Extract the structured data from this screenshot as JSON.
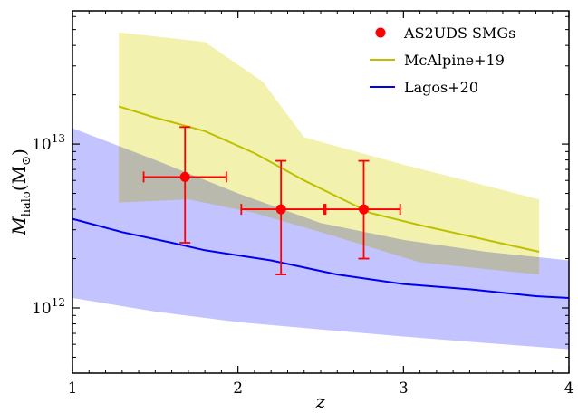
{
  "chart_data": {
    "type": "scatter",
    "xlabel": "z",
    "ylabel": "M_halo(M_⊙)",
    "ylabel_parts": {
      "main": "M",
      "sub": "halo",
      "unit_open": "(M",
      "unit_sub": "⊙",
      "unit_close": ")"
    },
    "xlim": [
      1,
      4
    ],
    "ylim": [
      400000000000.0,
      65000000000000.0
    ],
    "yscale": "log",
    "x_ticks": [
      1,
      2,
      3,
      4
    ],
    "y_ticks": [
      {
        "value": 1000000000000.0,
        "base": "10",
        "exp": "12"
      },
      {
        "value": 10000000000000.0,
        "base": "10",
        "exp": "13"
      }
    ],
    "legend": {
      "position": "top-right"
    },
    "series": [
      {
        "name": "AS2UDS SMGs",
        "kind": "errorbar",
        "color": "#ff0000",
        "points": [
          {
            "x": 1.68,
            "y": 6300000000000.0,
            "xerr": [
              1.43,
              1.93
            ],
            "yerr": [
              2500000000000.0,
              12700000000000.0
            ]
          },
          {
            "x": 2.26,
            "y": 4000000000000.0,
            "xerr": [
              2.02,
              2.52
            ],
            "yerr": [
              1600000000000.0,
              7900000000000.0
            ]
          },
          {
            "x": 2.76,
            "y": 4000000000000.0,
            "xerr": [
              2.53,
              2.98
            ],
            "yerr": [
              2000000000000.0,
              7900000000000.0
            ]
          }
        ]
      },
      {
        "name": "McAlpine+19",
        "kind": "line-band",
        "color": "#bfbf00",
        "band_color": "#f0f0a0",
        "x": [
          1.28,
          1.5,
          1.8,
          2.1,
          2.4,
          2.8,
          3.1,
          3.5,
          3.82
        ],
        "y": [
          17000000000000.0,
          14500000000000.0,
          12000000000000.0,
          8800000000000.0,
          6000000000000.0,
          3800000000000.0,
          3200000000000.0,
          2600000000000.0,
          2200000000000.0
        ],
        "band": {
          "x": [
            1.28,
            1.8,
            2.15,
            2.4,
            3.0,
            3.82
          ],
          "upper": [
            48000000000000.0,
            42000000000000.0,
            24000000000000.0,
            11000000000000.0,
            7500000000000.0,
            4600000000000.0
          ],
          "lower_x": [
            1.28,
            1.7,
            2.1,
            2.5,
            3.1,
            3.82
          ],
          "lower": [
            4400000000000.0,
            4600000000000.0,
            3800000000000.0,
            2900000000000.0,
            1900000000000.0,
            1600000000000.0
          ]
        }
      },
      {
        "name": "Lagos+20",
        "kind": "line-band",
        "color": "#0000ee",
        "band_color": "#b8b8ff",
        "x": [
          1.0,
          1.3,
          1.6,
          1.8,
          2.2,
          2.6,
          3.0,
          3.4,
          3.8,
          4.0
        ],
        "y": [
          3500000000000.0,
          2900000000000.0,
          2500000000000.0,
          2250000000000.0,
          1950000000000.0,
          1600000000000.0,
          1400000000000.0,
          1300000000000.0,
          1180000000000.0,
          1150000000000.0
        ],
        "band": {
          "x": [
            1.0,
            1.5,
            2.0,
            2.5,
            3.0,
            3.5,
            4.0
          ],
          "upper": [
            12500000000000.0,
            8000000000000.0,
            5000000000000.0,
            3300000000000.0,
            2600000000000.0,
            2200000000000.0,
            1950000000000.0
          ],
          "lower_x": [
            1.0,
            1.5,
            2.0,
            2.5,
            3.0,
            3.5,
            4.0
          ],
          "lower": [
            1150000000000.0,
            950000000000.0,
            820000000000.0,
            740000000000.0,
            670000000000.0,
            610000000000.0,
            560000000000.0
          ]
        }
      }
    ]
  }
}
